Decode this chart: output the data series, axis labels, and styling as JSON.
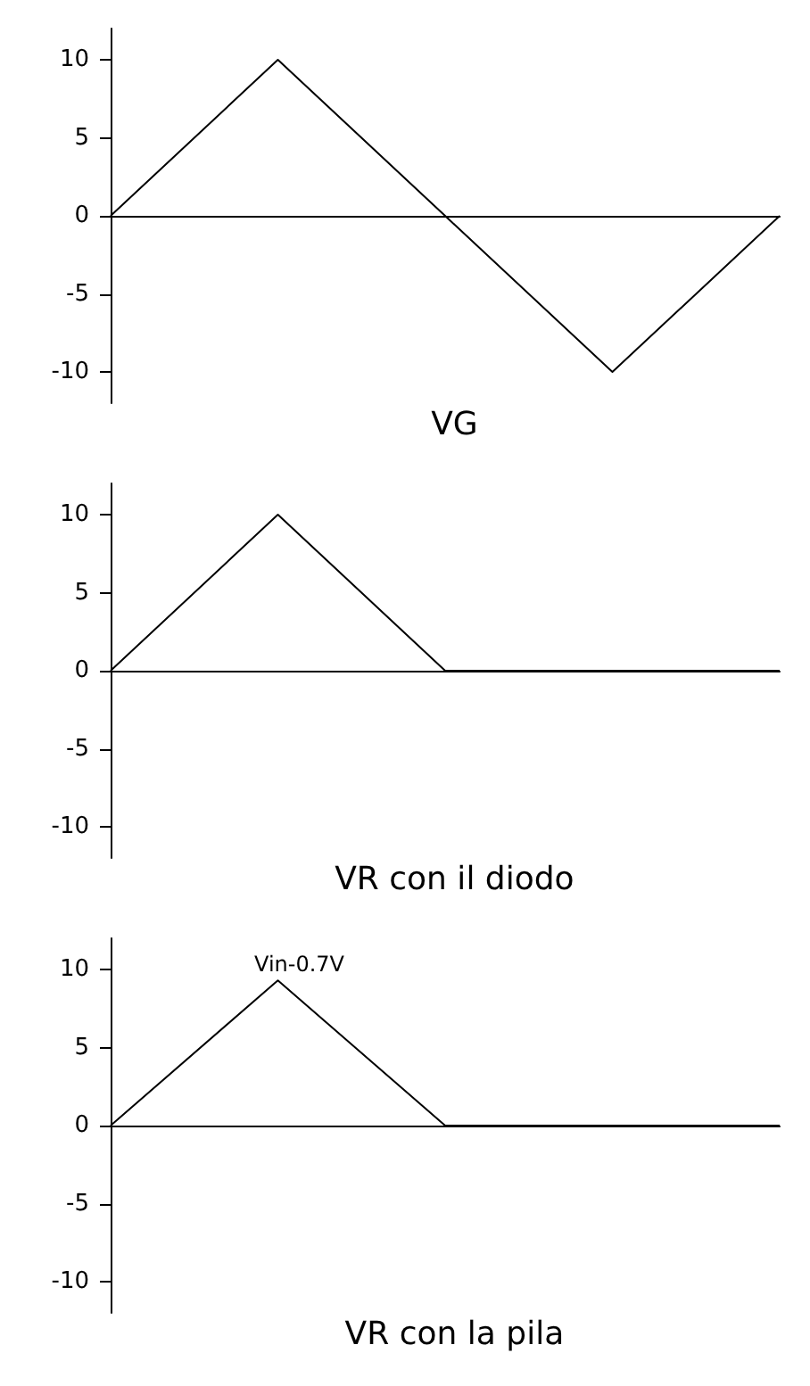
{
  "chart_data": [
    {
      "type": "line",
      "xlabel": "VG",
      "categories": [
        null,
        null,
        null,
        null,
        null
      ],
      "values": [
        0,
        10,
        0,
        -10,
        0
      ],
      "color": "#000000",
      "ylim": [
        -12,
        12
      ],
      "yticks": [
        -10,
        -5,
        0,
        5,
        10
      ],
      "tick_labels": "y",
      "marker": "none",
      "line_style": "solid"
    },
    {
      "type": "line",
      "xlabel": "VR con il diodo",
      "categories": [
        null,
        null,
        null,
        null,
        null
      ],
      "values": [
        0,
        10,
        0,
        0,
        0
      ],
      "color": "#000000",
      "ylim": [
        -12,
        12
      ],
      "yticks": [
        -10,
        -5,
        0,
        5,
        10
      ],
      "tick_labels": "y",
      "marker": "none",
      "line_style": "solid"
    },
    {
      "type": "line",
      "xlabel": "VR con la pila",
      "categories": [
        null,
        null,
        null,
        null,
        null
      ],
      "values": [
        0,
        9.3,
        0,
        0,
        0
      ],
      "color": "#000000",
      "ylim": [
        -12,
        12
      ],
      "yticks": [
        -10,
        -5,
        0,
        5,
        10
      ],
      "tick_labels": "y",
      "marker": "none",
      "line_style": "solid",
      "annotations": [
        "Vin-0.7V"
      ]
    }
  ]
}
